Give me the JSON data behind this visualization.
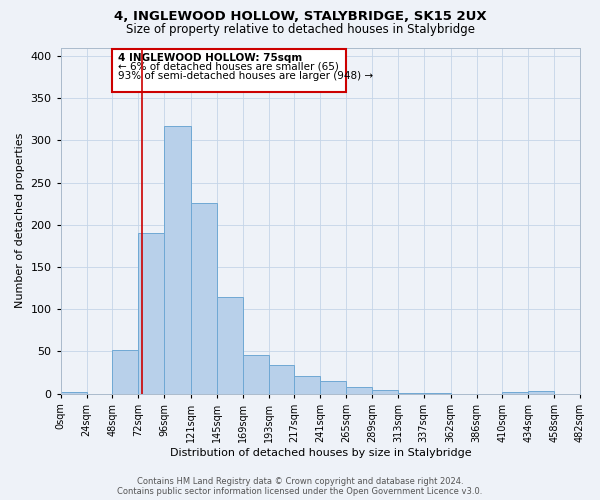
{
  "title": "4, INGLEWOOD HOLLOW, STALYBRIDGE, SK15 2UX",
  "subtitle": "Size of property relative to detached houses in Stalybridge",
  "xlabel": "Distribution of detached houses by size in Stalybridge",
  "ylabel": "Number of detached properties",
  "bar_color": "#b8d0ea",
  "bar_edge_color": "#6fa8d4",
  "background_color": "#eef2f8",
  "bin_edges": [
    0,
    24,
    48,
    72,
    96,
    121,
    145,
    169,
    193,
    217,
    241,
    265,
    289,
    313,
    337,
    362,
    386,
    410,
    434,
    458,
    482
  ],
  "bin_labels": [
    "0sqm",
    "24sqm",
    "48sqm",
    "72sqm",
    "96sqm",
    "121sqm",
    "145sqm",
    "169sqm",
    "193sqm",
    "217sqm",
    "241sqm",
    "265sqm",
    "289sqm",
    "313sqm",
    "337sqm",
    "362sqm",
    "386sqm",
    "410sqm",
    "434sqm",
    "458sqm",
    "482sqm"
  ],
  "counts": [
    2,
    0,
    52,
    190,
    317,
    226,
    114,
    46,
    34,
    21,
    15,
    8,
    4,
    1,
    1,
    0,
    0,
    2,
    3,
    0
  ],
  "ylim": [
    0,
    410
  ],
  "yticks": [
    0,
    50,
    100,
    150,
    200,
    250,
    300,
    350,
    400
  ],
  "annotation_title": "4 INGLEWOOD HOLLOW: 75sqm",
  "annotation_line1": "← 6% of detached houses are smaller (65)",
  "annotation_line2": "93% of semi-detached houses are larger (948) →",
  "annotation_box_color": "#ffffff",
  "annotation_box_edge": "#cc0000",
  "property_line_x": 75,
  "property_line_color": "#cc0000",
  "footer_line1": "Contains HM Land Registry data © Crown copyright and database right 2024.",
  "footer_line2": "Contains public sector information licensed under the Open Government Licence v3.0."
}
